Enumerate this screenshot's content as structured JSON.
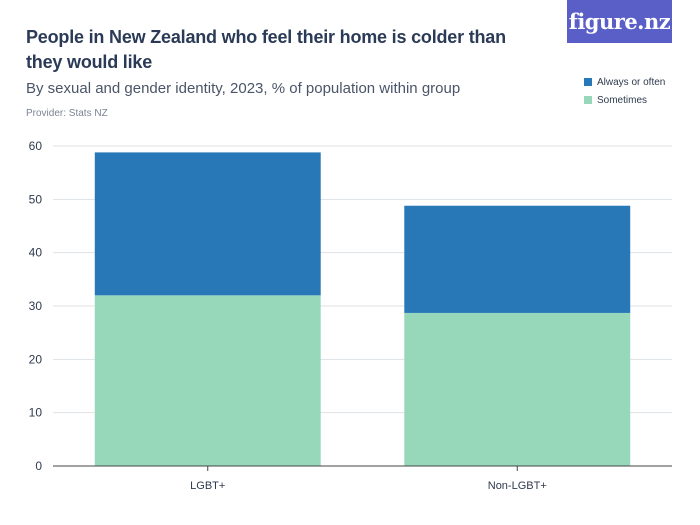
{
  "title": "People in New Zealand who feel their home is colder than they would like",
  "subtitle": "By sexual and gender identity, 2023, % of population within group",
  "provider": "Provider: Stats NZ",
  "brand": "figure.nz",
  "colors": {
    "always_or_often": "#2878b8",
    "sometimes": "#97d8bb",
    "brand_bg": "#5a5fc7",
    "grid": "#dde1e6",
    "axis": "#444444"
  },
  "chart_data": {
    "type": "bar",
    "stacked": true,
    "categories": [
      "LGBT+",
      "Non-LGBT+"
    ],
    "series": [
      {
        "name": "Sometimes",
        "values": [
          32.0,
          28.7
        ]
      },
      {
        "name": "Always or often",
        "values": [
          26.8,
          20.1
        ]
      }
    ],
    "ylim": [
      0,
      60
    ],
    "yticks": [
      0,
      10,
      20,
      30,
      40,
      50,
      60
    ],
    "grid": true,
    "legend_position": "top-right"
  }
}
